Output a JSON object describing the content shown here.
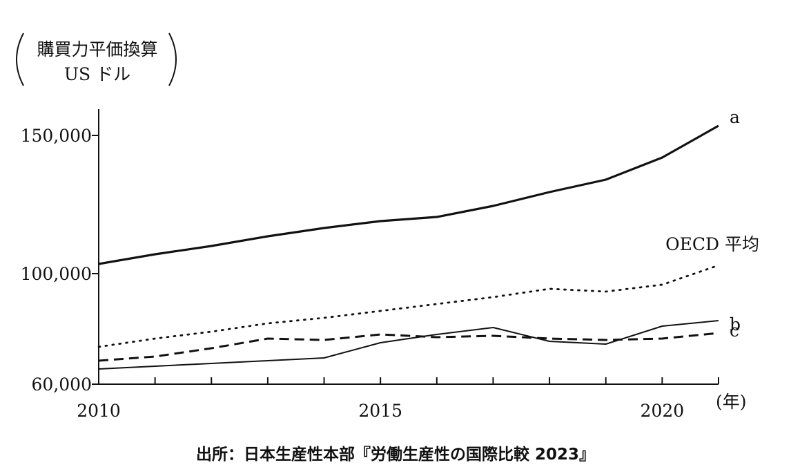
{
  "chart_data": {
    "type": "line",
    "ylabel_lines": [
      "購買力平価換算",
      "US ドル"
    ],
    "x_unit": "(年)",
    "x": [
      2010,
      2011,
      2012,
      2013,
      2014,
      2015,
      2016,
      2017,
      2018,
      2019,
      2020,
      2021
    ],
    "xlim": [
      2010,
      2021
    ],
    "x_tick_labels": [
      {
        "x": 2010,
        "label": "2010"
      },
      {
        "x": 2015,
        "label": "2015"
      },
      {
        "x": 2020,
        "label": "2020"
      }
    ],
    "y_tick_labels": [
      {
        "y": 60000,
        "label": "60,000"
      },
      {
        "y": 100000,
        "label": "100,000"
      },
      {
        "y": 150000,
        "label": "150,000"
      }
    ],
    "ylim": [
      60000,
      160000
    ],
    "grid": false,
    "series": [
      {
        "name": "a",
        "style": "solid-bold",
        "values": [
          103500,
          107000,
          110000,
          113500,
          116500,
          119000,
          120500,
          124500,
          129500,
          134000,
          142000,
          153500
        ]
      },
      {
        "name": "OECD 平均",
        "style": "dotted",
        "values": [
          73500,
          76500,
          79000,
          82000,
          84000,
          86500,
          89000,
          91500,
          94500,
          93500,
          96000,
          103000
        ]
      },
      {
        "name": "b",
        "style": "solid-thin",
        "values": [
          65500,
          66500,
          67500,
          68500,
          69500,
          75000,
          78000,
          80500,
          75500,
          74500,
          81000,
          83000
        ]
      },
      {
        "name": "c",
        "style": "dashed",
        "values": [
          68500,
          70000,
          73000,
          76500,
          76000,
          78000,
          77000,
          77500,
          76500,
          76000,
          76500,
          78500
        ]
      }
    ]
  },
  "source_text": "出所：日本生産性本部『労働生産性の国際比較 2023』"
}
